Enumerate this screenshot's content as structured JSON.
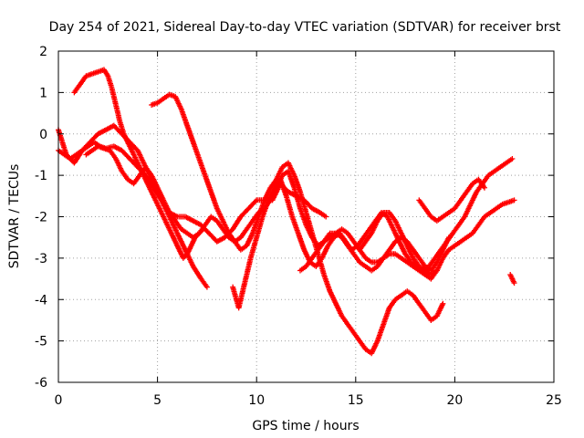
{
  "chart_data": {
    "type": "scatter",
    "title": "Day 254 of 2021, Sidereal Day-to-day VTEC variation (SDTVAR) for receiver brst",
    "xlabel": "GPS time / hours",
    "ylabel": "SDTVAR / TECUs",
    "xlim": [
      0,
      25
    ],
    "ylim": [
      -6,
      2
    ],
    "xticks": [
      "0",
      "5",
      "10",
      "15",
      "20",
      "25"
    ],
    "yticks": [
      "2",
      "1",
      "0",
      "-1",
      "-2",
      "-3",
      "-4",
      "-5",
      "-6"
    ],
    "grid": true,
    "legend": "none",
    "marker": "plus",
    "color": "#ff0000",
    "series": [
      {
        "x": [
          0.0,
          0.3,
          0.6,
          0.9,
          1.2,
          1.5,
          1.8,
          2.1,
          2.4,
          2.8,
          3.2,
          3.6,
          4.0,
          4.4,
          4.8,
          5.2,
          5.6,
          6.0,
          6.4,
          6.8,
          7.2,
          7.6,
          8.0,
          8.4,
          8.8,
          9.2,
          9.6,
          10.0,
          10.4,
          10.8,
          11.2,
          11.6,
          12.0,
          12.4,
          12.8,
          13.2,
          13.5
        ],
        "y": [
          -0.4,
          -0.5,
          -0.6,
          -0.5,
          -0.4,
          -0.3,
          -0.2,
          -0.3,
          -0.35,
          -0.3,
          -0.4,
          -0.6,
          -0.8,
          -1.0,
          -1.3,
          -1.6,
          -1.9,
          -2.0,
          -2.0,
          -2.1,
          -2.2,
          -2.4,
          -2.6,
          -2.5,
          -2.3,
          -2.0,
          -1.8,
          -1.6,
          -1.6,
          -1.6,
          -1.2,
          -1.4,
          -1.5,
          -1.6,
          -1.8,
          -1.9,
          -2.0
        ]
      },
      {
        "x": [
          0.0,
          0.4,
          0.8,
          1.2,
          1.6,
          2.0,
          2.4,
          2.8,
          3.2,
          3.6,
          4.0,
          4.4,
          4.8,
          5.2,
          5.6,
          6.0,
          6.4,
          6.8,
          7.2,
          7.5
        ],
        "y": [
          0.1,
          -0.5,
          -0.7,
          -0.4,
          -0.2,
          0.0,
          0.1,
          0.2,
          0.0,
          -0.2,
          -0.4,
          -0.8,
          -1.2,
          -1.6,
          -2.0,
          -2.4,
          -2.8,
          -3.2,
          -3.5,
          -3.7
        ]
      },
      {
        "x": [
          0.8,
          1.1,
          1.4,
          1.7,
          2.0,
          2.3,
          2.5,
          2.7,
          2.9,
          3.1,
          3.3,
          3.5,
          3.7,
          3.9,
          4.1,
          4.3,
          4.5,
          4.7,
          4.9,
          5.1,
          5.3,
          5.5,
          5.7,
          5.9,
          6.1,
          6.3,
          6.5,
          6.7,
          6.9,
          7.1,
          7.3
        ],
        "y": [
          1.0,
          1.2,
          1.4,
          1.45,
          1.5,
          1.55,
          1.4,
          1.1,
          0.7,
          0.3,
          0.0,
          -0.2,
          -0.4,
          -0.6,
          -0.8,
          -1.0,
          -1.2,
          -1.4,
          -1.6,
          -1.8,
          -2.0,
          -2.2,
          -2.4,
          -2.6,
          -2.8,
          -3.0,
          -2.9,
          -2.7,
          -2.5,
          -2.4,
          -2.3
        ]
      },
      {
        "x": [
          4.7,
          5.0,
          5.3,
          5.6,
          5.9,
          6.2,
          6.5,
          6.8,
          7.1,
          7.4,
          7.7,
          8.0,
          8.3,
          8.6,
          8.9,
          9.2,
          9.5,
          9.8,
          10.1,
          10.4,
          10.7,
          11.0,
          11.3,
          11.6,
          11.9,
          12.2,
          12.5,
          12.8,
          13.1,
          13.4,
          13.7,
          14.0,
          14.3,
          14.6,
          14.9,
          15.2,
          15.5,
          15.8,
          16.1,
          16.4,
          16.7,
          17.0,
          17.3,
          17.6,
          17.9,
          18.2,
          18.5,
          18.8,
          19.1,
          19.4
        ],
        "y": [
          0.7,
          0.75,
          0.85,
          0.95,
          0.9,
          0.6,
          0.2,
          -0.2,
          -0.6,
          -1.0,
          -1.4,
          -1.8,
          -2.1,
          -2.4,
          -2.6,
          -2.8,
          -2.7,
          -2.4,
          -2.0,
          -1.6,
          -1.3,
          -1.1,
          -0.8,
          -0.7,
          -1.0,
          -1.4,
          -1.9,
          -2.4,
          -2.9,
          -3.4,
          -3.8,
          -4.1,
          -4.4,
          -4.6,
          -4.8,
          -5.0,
          -5.2,
          -5.3,
          -5.0,
          -4.6,
          -4.2,
          -4.0,
          -3.9,
          -3.8,
          -3.9,
          -4.1,
          -4.3,
          -4.5,
          -4.4,
          -4.1
        ]
      },
      {
        "x": [
          1.4,
          1.7,
          2.0,
          2.3,
          2.6,
          2.9,
          3.2,
          3.5,
          3.8,
          4.1,
          4.4,
          4.7,
          5.0,
          5.3,
          5.6,
          5.9,
          6.2,
          6.5,
          6.8,
          7.1,
          7.4,
          7.7,
          8.0,
          8.3,
          8.6,
          8.9,
          9.2,
          9.5,
          9.8,
          10.1,
          10.4,
          10.7,
          11.0,
          11.3,
          11.6,
          11.9,
          12.2,
          12.5,
          12.8,
          13.1,
          13.4,
          13.7,
          14.0,
          14.3,
          14.6,
          14.9,
          15.2,
          15.5,
          15.8,
          16.1,
          16.4,
          16.7,
          17.0,
          17.3,
          17.6,
          17.9,
          18.2,
          18.5,
          18.8,
          19.1,
          19.4,
          19.7,
          20.0,
          20.3,
          20.6,
          20.9,
          21.2,
          21.5,
          21.8,
          22.1,
          22.4,
          22.7,
          23.0
        ],
        "y": [
          -0.5,
          -0.4,
          -0.3,
          -0.35,
          -0.4,
          -0.6,
          -0.9,
          -1.1,
          -1.2,
          -1.0,
          -0.8,
          -1.0,
          -1.3,
          -1.6,
          -1.9,
          -2.1,
          -2.3,
          -2.4,
          -2.5,
          -2.4,
          -2.2,
          -2.0,
          -2.1,
          -2.3,
          -2.5,
          -2.6,
          -2.5,
          -2.3,
          -2.1,
          -1.9,
          -1.8,
          -1.6,
          -1.3,
          -1.0,
          -0.9,
          -1.3,
          -1.8,
          -2.2,
          -2.5,
          -2.7,
          -2.6,
          -2.5,
          -2.4,
          -2.3,
          -2.4,
          -2.6,
          -2.8,
          -3.0,
          -3.1,
          -3.1,
          -3.0,
          -2.9,
          -2.9,
          -3.0,
          -3.1,
          -3.2,
          -3.3,
          -3.4,
          -3.5,
          -3.3,
          -3.0,
          -2.8,
          -2.7,
          -2.6,
          -2.5,
          -2.4,
          -2.2,
          -2.0,
          -1.9,
          -1.8,
          -1.7,
          -1.65,
          -1.6
        ]
      },
      {
        "x": [
          8.8,
          9.1,
          9.4,
          9.7,
          10.0,
          10.3,
          10.6,
          10.9,
          11.2,
          11.5,
          11.8,
          12.1,
          12.4,
          12.7,
          13.0,
          13.3,
          13.6,
          13.9,
          14.2,
          14.5,
          14.8,
          15.1,
          15.4,
          15.7,
          16.0,
          16.3,
          16.6,
          16.9,
          17.2,
          17.5,
          17.8,
          18.1,
          18.4,
          18.7,
          19.0,
          19.3,
          19.6,
          19.9,
          20.2,
          20.5,
          20.8,
          21.1,
          21.4,
          21.7,
          22.0,
          22.3,
          22.6,
          22.9
        ],
        "y": [
          -3.7,
          -4.2,
          -3.6,
          -3.0,
          -2.5,
          -2.0,
          -1.6,
          -1.3,
          -1.1,
          -1.5,
          -2.0,
          -2.4,
          -2.8,
          -3.1,
          -3.2,
          -3.0,
          -2.7,
          -2.5,
          -2.4,
          -2.6,
          -2.8,
          -2.7,
          -2.5,
          -2.3,
          -2.1,
          -1.9,
          -2.0,
          -2.3,
          -2.6,
          -2.9,
          -3.1,
          -3.2,
          -3.3,
          -3.2,
          -3.0,
          -2.8,
          -2.6,
          -2.4,
          -2.2,
          -2.0,
          -1.7,
          -1.4,
          -1.2,
          -1.0,
          -0.9,
          -0.8,
          -0.7,
          -0.6
        ]
      },
      {
        "x": [
          12.2,
          12.5,
          12.8,
          13.1,
          13.4,
          13.7,
          14.0,
          14.3,
          14.6,
          14.9,
          15.2,
          15.5,
          15.8,
          16.1,
          16.4,
          16.7,
          17.0,
          17.3,
          17.6,
          17.9,
          18.2,
          18.5,
          18.8,
          19.1,
          19.4,
          19.7
        ],
        "y": [
          -3.3,
          -3.2,
          -3.0,
          -2.8,
          -2.6,
          -2.4,
          -2.4,
          -2.5,
          -2.7,
          -2.9,
          -3.1,
          -3.2,
          -3.3,
          -3.2,
          -3.0,
          -2.8,
          -2.6,
          -2.5,
          -2.6,
          -2.8,
          -3.0,
          -3.2,
          -3.3,
          -3.1,
          -2.8,
          -2.5
        ]
      },
      {
        "x": [
          15.2,
          15.5,
          15.8,
          16.1,
          16.4,
          16.7,
          17.0,
          17.3,
          17.6,
          17.9,
          18.2,
          18.5,
          18.8,
          19.1
        ],
        "y": [
          -2.8,
          -2.6,
          -2.4,
          -2.1,
          -1.9,
          -1.9,
          -2.1,
          -2.4,
          -2.7,
          -3.0,
          -3.2,
          -3.3,
          -3.4,
          -3.3
        ]
      },
      {
        "x": [
          18.2,
          18.5,
          18.8,
          19.1,
          19.4,
          19.7,
          20.0,
          20.3,
          20.6,
          20.9,
          21.2,
          21.5
        ],
        "y": [
          -1.6,
          -1.8,
          -2.0,
          -2.1,
          -2.0,
          -1.9,
          -1.8,
          -1.6,
          -1.4,
          -1.2,
          -1.1,
          -1.3
        ]
      },
      {
        "x": [
          22.8,
          22.9,
          23.0
        ],
        "y": [
          -3.4,
          -3.5,
          -3.6
        ]
      }
    ]
  }
}
